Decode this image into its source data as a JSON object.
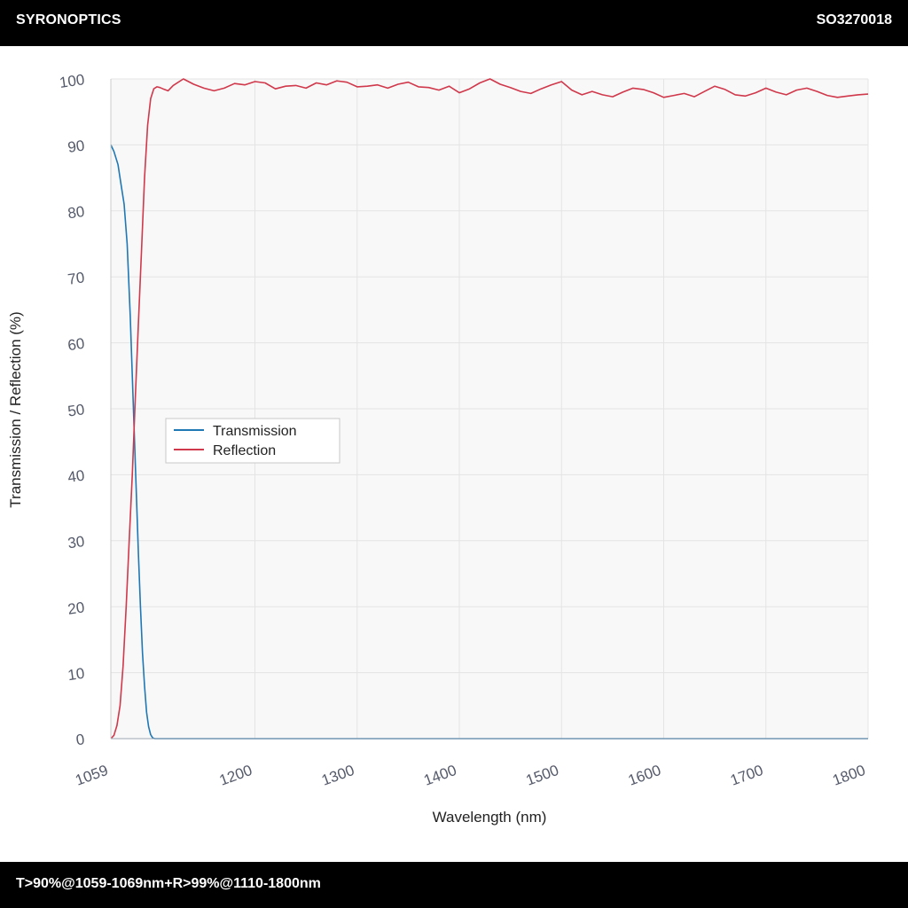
{
  "header": {
    "brand": "SYRONOPTICS",
    "part_number": "SO3270018"
  },
  "footer": {
    "spec": "T>90%@1059-1069nm+R>99%@1110-1800nm"
  },
  "colors": {
    "transmission": "#1f77b4",
    "reflection": "#d0384b",
    "plot_bg": "#f8f8f8",
    "grid": "#e4e4e4",
    "tick_text": "#555a6a"
  },
  "chart_data": {
    "type": "line",
    "title": "",
    "xlabel": "Wavelength (nm)",
    "ylabel": "Transmission / Reflection (%)",
    "xlim": [
      1059,
      1800
    ],
    "ylim": [
      0,
      100
    ],
    "x_ticks": [
      1059,
      1200,
      1300,
      1400,
      1500,
      1600,
      1700,
      1800
    ],
    "y_ticks": [
      0,
      10,
      20,
      30,
      40,
      50,
      60,
      70,
      80,
      90,
      100
    ],
    "grid": true,
    "legend_position": "center-left",
    "series": [
      {
        "name": "Transmission",
        "color": "#1f77b4",
        "x": [
          1059,
          1062,
          1066,
          1069,
          1072,
          1075,
          1078,
          1080,
          1082,
          1084,
          1086,
          1088,
          1090,
          1092,
          1094,
          1096,
          1098,
          1100,
          1102,
          1104,
          1106,
          1108,
          1110,
          1200,
          1300,
          1400,
          1500,
          1600,
          1700,
          1800
        ],
        "y": [
          90,
          89,
          87,
          84,
          81,
          75,
          64,
          55,
          46,
          37,
          28,
          20,
          13,
          8,
          4,
          1.8,
          0.6,
          0.1,
          0,
          0,
          0,
          0,
          0,
          0,
          0,
          0,
          0,
          0,
          0,
          0
        ]
      },
      {
        "name": "Reflection",
        "color": "#d0384b",
        "x": [
          1059,
          1062,
          1065,
          1068,
          1071,
          1074,
          1077,
          1080,
          1083,
          1086,
          1089,
          1092,
          1095,
          1098,
          1101,
          1104,
          1107,
          1110,
          1115,
          1120,
          1130,
          1140,
          1150,
          1160,
          1170,
          1180,
          1190,
          1200,
          1210,
          1220,
          1230,
          1240,
          1250,
          1260,
          1270,
          1280,
          1290,
          1300,
          1310,
          1320,
          1330,
          1340,
          1350,
          1360,
          1370,
          1380,
          1390,
          1400,
          1410,
          1420,
          1430,
          1440,
          1450,
          1460,
          1470,
          1480,
          1490,
          1500,
          1510,
          1520,
          1530,
          1540,
          1550,
          1560,
          1570,
          1580,
          1590,
          1600,
          1610,
          1620,
          1630,
          1640,
          1650,
          1660,
          1670,
          1680,
          1690,
          1700,
          1710,
          1720,
          1730,
          1740,
          1750,
          1760,
          1770,
          1780,
          1790,
          1800
        ],
        "y": [
          0,
          0.5,
          2,
          5,
          11,
          20,
          30,
          40,
          52,
          63,
          74,
          85,
          93,
          97,
          98.5,
          98.8,
          98.7,
          98.5,
          98.2,
          99.0,
          100.0,
          99.2,
          98.6,
          98.2,
          98.6,
          99.3,
          99.1,
          99.6,
          99.4,
          98.5,
          98.9,
          99.0,
          98.6,
          99.4,
          99.1,
          99.7,
          99.5,
          98.8,
          98.9,
          99.1,
          98.6,
          99.2,
          99.5,
          98.8,
          98.7,
          98.3,
          98.9,
          97.9,
          98.5,
          99.4,
          100.0,
          99.2,
          98.7,
          98.1,
          97.8,
          98.5,
          99.1,
          99.6,
          98.3,
          97.6,
          98.1,
          97.6,
          97.3,
          98.0,
          98.6,
          98.4,
          97.9,
          97.2,
          97.5,
          97.8,
          97.3,
          98.1,
          98.9,
          98.4,
          97.6,
          97.4,
          97.9,
          98.6,
          98.0,
          97.6,
          98.3,
          98.6,
          98.1,
          97.5,
          97.2,
          97.4,
          97.6,
          97.7
        ]
      }
    ]
  }
}
